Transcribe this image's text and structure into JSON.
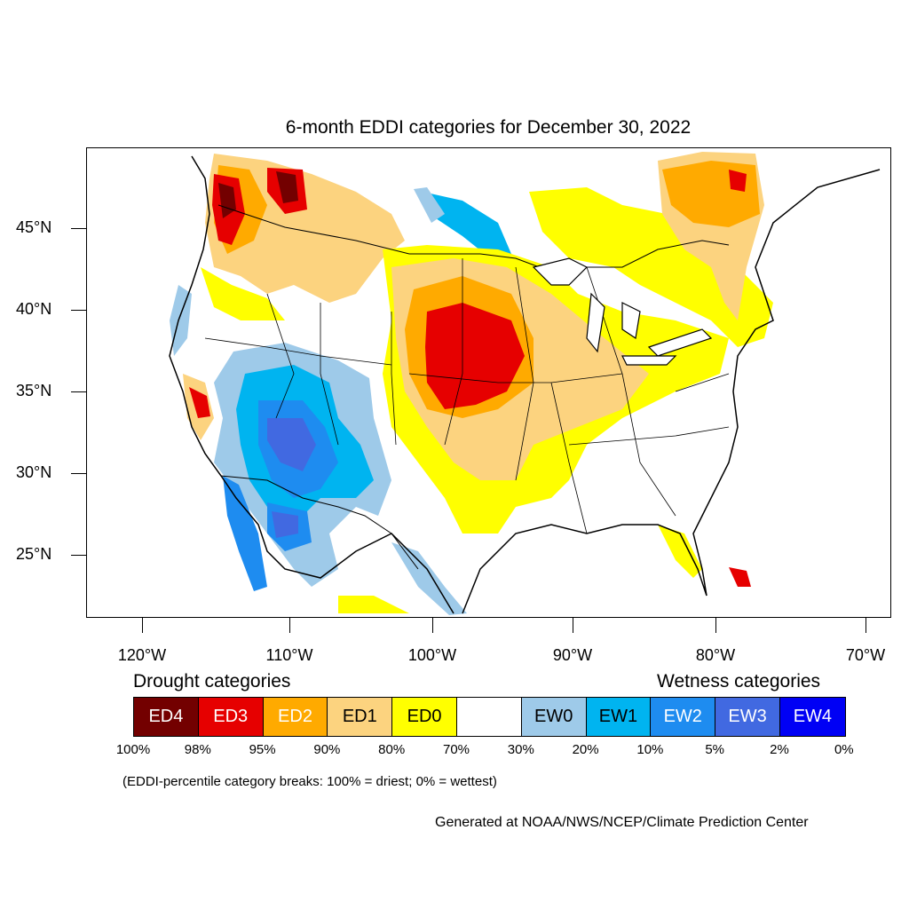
{
  "title": "6-month EDDI categories for December 30, 2022",
  "lat_labels": [
    "45°N",
    "40°N",
    "35°N",
    "30°N",
    "25°N"
  ],
  "lon_labels": [
    "120°W",
    "110°W",
    "100°W",
    "90°W",
    "80°W",
    "70°W"
  ],
  "legend": {
    "drought_heading": "Drought categories",
    "wetness_heading": "Wetness categories",
    "categories": [
      {
        "label": "ED4",
        "color": "#730000",
        "text_color": "#ffffff"
      },
      {
        "label": "ED3",
        "color": "#e60000",
        "text_color": "#ffffff"
      },
      {
        "label": "ED2",
        "color": "#ffaa00",
        "text_color": "#ffffff"
      },
      {
        "label": "ED1",
        "color": "#fcd37f",
        "text_color": "#000000"
      },
      {
        "label": "ED0",
        "color": "#ffff00",
        "text_color": "#000000"
      },
      {
        "label": "",
        "color": "#ffffff",
        "text_color": "#000000"
      },
      {
        "label": "EW0",
        "color": "#9ecae9",
        "text_color": "#000000"
      },
      {
        "label": "EW1",
        "color": "#00b4f0",
        "text_color": "#000000"
      },
      {
        "label": "EW2",
        "color": "#1e8cf0",
        "text_color": "#ffffff"
      },
      {
        "label": "EW3",
        "color": "#4169e1",
        "text_color": "#ffffff"
      },
      {
        "label": "EW4",
        "color": "#0000f5",
        "text_color": "#ffffff"
      }
    ],
    "breaks": [
      "100%",
      "98%",
      "95%",
      "90%",
      "80%",
      "70%",
      "30%",
      "20%",
      "10%",
      "5%",
      "2%",
      "0%"
    ]
  },
  "note": "(EDDI-percentile category breaks: 100% = driest; 0% = wettest)",
  "credit": "Generated at NOAA/NWS/NCEP/Climate Prediction Center"
}
